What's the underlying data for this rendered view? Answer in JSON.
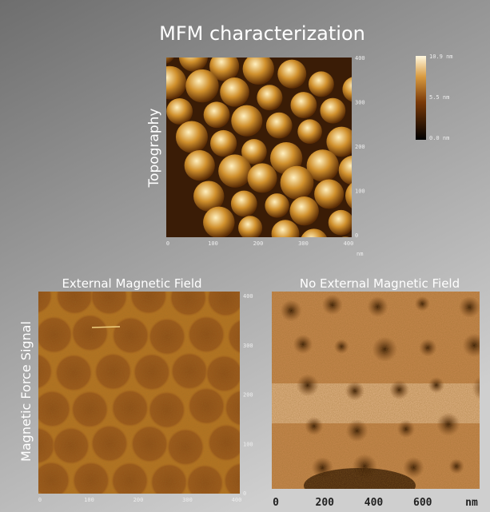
{
  "title": "MFM characterization",
  "topography": {
    "label": "Topography",
    "y_ticks": [
      "400",
      "300",
      "200",
      "100",
      "0"
    ],
    "x_ticks": [
      "0",
      "100",
      "200",
      "300",
      "400"
    ],
    "unit": "nm",
    "colorbar": [
      "10.9 nm",
      "5.5 nm",
      "0.0 nm"
    ]
  },
  "side_label": "Magnetic Force Signal",
  "panels": [
    {
      "title": "External Magnetic Field",
      "y_ticks": [
        "400",
        "300",
        "200",
        "100",
        "0"
      ],
      "x_ticks": [
        "0",
        "100",
        "200",
        "300",
        "400"
      ]
    },
    {
      "title": "No External Magnetic Field",
      "x_ticks": [
        "0",
        "200",
        "400",
        "600",
        "nm"
      ]
    }
  ]
}
